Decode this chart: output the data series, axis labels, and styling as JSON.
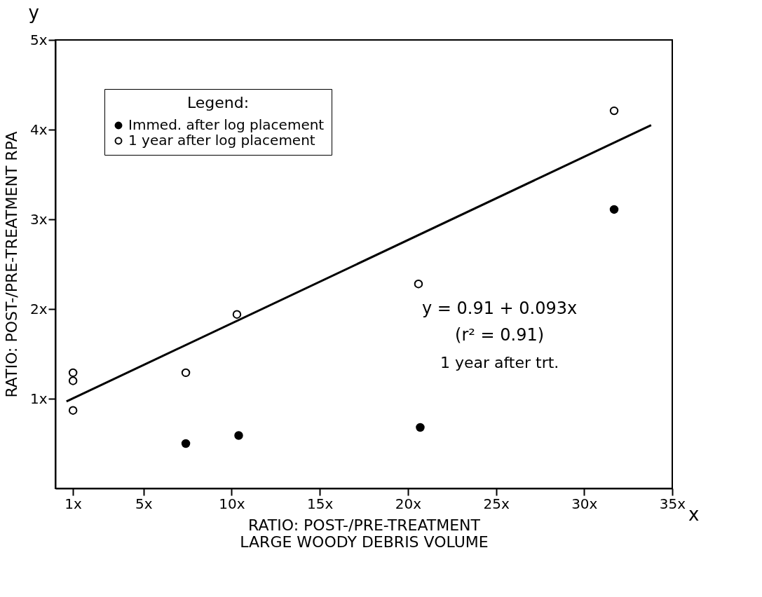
{
  "chart_data": {
    "type": "scatter",
    "xlabel": "RATIO: POST-/PRE-TREATMENT\nLARGE WOODY DEBRIS VOLUME",
    "ylabel": "RATIO: POST-/PRE-TREATMENT RPA",
    "legend_title": "Legend:",
    "series": [
      {
        "name": "Immed. after log placement",
        "color": "#000000",
        "marker": "circle",
        "x": [
          7.4,
          10.4,
          20.7,
          31.7
        ],
        "values": [
          0.5,
          0.59,
          0.68,
          3.11
        ]
      },
      {
        "name": "1 year after log placement",
        "color": "#ffffff",
        "marker": "circle",
        "x": [
          1,
          1,
          1,
          7.4,
          10.3,
          20.6,
          31.7
        ],
        "values": [
          0.87,
          1.2,
          1.29,
          1.29,
          1.94,
          2.28,
          4.21
        ]
      },
      {
        "type": "line",
        "color": "#000000",
        "marker": "none",
        "line_style": "solid",
        "x": [
          0.63,
          33.8
        ],
        "values": [
          0.97,
          4.05
        ]
      }
    ],
    "xlim": [
      0,
      35
    ],
    "xticks": [
      {
        "value": 1,
        "label": "1x"
      },
      {
        "value": 5,
        "label": "5x"
      },
      {
        "value": 10,
        "label": "10x"
      },
      {
        "value": 15,
        "label": "15x"
      },
      {
        "value": 20,
        "label": "20x"
      },
      {
        "value": 25,
        "label": "25x"
      },
      {
        "value": 30,
        "label": "30x"
      },
      {
        "value": 35,
        "label": "35x"
      }
    ],
    "ylim": [
      0,
      5
    ],
    "yticks": [
      {
        "value": 1,
        "label": "1x"
      },
      {
        "value": 2,
        "label": "2x"
      },
      {
        "value": 3,
        "label": "3x"
      },
      {
        "value": 4,
        "label": "4x"
      },
      {
        "value": 5,
        "label": "5x"
      }
    ],
    "annotations": [
      "y = 0.91 + 0.093x",
      "(r² = 0.91)",
      "1 year after trt.",
      "y",
      "x"
    ],
    "legend": "top left",
    "grid": false
  }
}
